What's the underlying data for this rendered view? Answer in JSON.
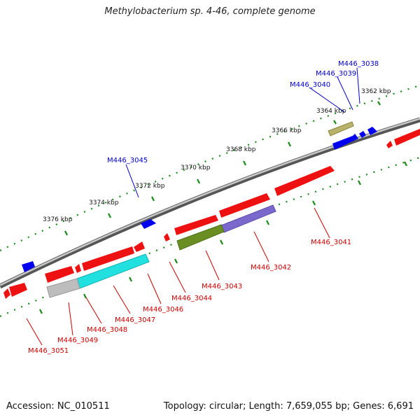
{
  "title": "Methylobacterium sp. 4-46, complete genome",
  "footer": {
    "accession": "Accession: NC_010511",
    "summary": "Topology: circular; Length: 7,659,055 bp; Genes: 6,691"
  },
  "ticks": [
    "3362 kbp",
    "3364 kbp",
    "3366 kbp",
    "3368 kbp",
    "3370 kbp",
    "3372 kbp",
    "3374 kbp",
    "3376 kbp"
  ],
  "genes_forward": [
    "M446_3038",
    "M446_3039",
    "M446_3040",
    "M446_3045"
  ],
  "genes_reverse": [
    "M446_3041",
    "M446_3042",
    "M446_3043",
    "M446_3044",
    "M446_3046",
    "M446_3047",
    "M446_3048",
    "M446_3049",
    "M446_3051"
  ],
  "colors": {
    "forward_label": "#0000cc",
    "reverse_label": "#cc0000",
    "red": "#ee1111",
    "blue": "#0000ee",
    "khaki": "#b8b26a",
    "olive": "#6b8e23",
    "purple": "#7b68cc",
    "cyan": "#22e0e0",
    "gray": "#bdbdbd",
    "tick": "#1a8a1a"
  }
}
